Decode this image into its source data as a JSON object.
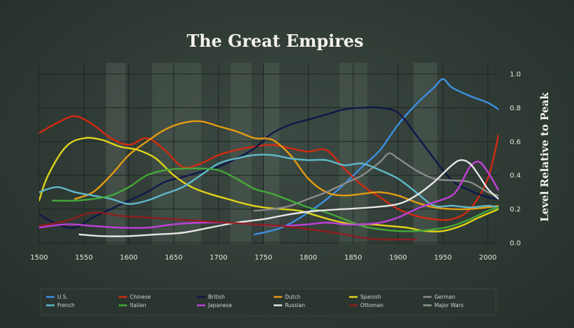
{
  "chart_data": {
    "type": "line",
    "title": "The Great Empires",
    "xlabel": "",
    "ylabel": "Level Relative to Peak",
    "xlim": [
      1500,
      2012
    ],
    "ylim": [
      0,
      1.0
    ],
    "x_ticks": [
      1500,
      1550,
      1600,
      1650,
      1700,
      1750,
      1800,
      1850,
      1900,
      1950,
      2000
    ],
    "y_ticks": [
      "0.0",
      "0.2",
      "0.4",
      "0.6",
      "0.8",
      "1.0"
    ],
    "grid": true,
    "legend_position": "bottom",
    "series": [
      {
        "name": "U.S.",
        "color": "#3d8fe0",
        "x": [
          1740,
          1770,
          1800,
          1830,
          1860,
          1880,
          1900,
          1920,
          1940,
          1950,
          1960,
          1980,
          2000,
          2012
        ],
        "y": [
          0.05,
          0.09,
          0.18,
          0.3,
          0.45,
          0.55,
          0.7,
          0.82,
          0.92,
          0.97,
          0.92,
          0.87,
          0.83,
          0.79
        ]
      },
      {
        "name": "Chinese",
        "color": "#d22a10",
        "x": [
          1500,
          1520,
          1540,
          1560,
          1580,
          1600,
          1620,
          1640,
          1660,
          1680,
          1700,
          1720,
          1740,
          1760,
          1780,
          1800,
          1820,
          1840,
          1860,
          1880,
          1900,
          1920,
          1940,
          1960,
          1980,
          2000,
          2012
        ],
        "y": [
          0.65,
          0.71,
          0.75,
          0.7,
          0.62,
          0.58,
          0.62,
          0.55,
          0.45,
          0.47,
          0.52,
          0.55,
          0.57,
          0.58,
          0.56,
          0.54,
          0.55,
          0.44,
          0.34,
          0.27,
          0.2,
          0.16,
          0.14,
          0.14,
          0.2,
          0.38,
          0.64
        ]
      },
      {
        "name": "British",
        "color": "#10174a",
        "x": [
          1500,
          1520,
          1540,
          1560,
          1580,
          1600,
          1620,
          1640,
          1660,
          1680,
          1700,
          1720,
          1740,
          1760,
          1780,
          1800,
          1820,
          1840,
          1860,
          1880,
          1900,
          1920,
          1940,
          1960,
          1980,
          2000,
          2012
        ],
        "y": [
          0.17,
          0.11,
          0.09,
          0.15,
          0.2,
          0.25,
          0.3,
          0.36,
          0.39,
          0.42,
          0.45,
          0.5,
          0.56,
          0.65,
          0.7,
          0.73,
          0.76,
          0.79,
          0.8,
          0.8,
          0.77,
          0.64,
          0.5,
          0.37,
          0.31,
          0.27,
          0.26
        ]
      },
      {
        "name": "Dutch",
        "color": "#e39b12",
        "x": [
          1540,
          1560,
          1580,
          1600,
          1620,
          1640,
          1660,
          1680,
          1700,
          1720,
          1740,
          1760,
          1780,
          1800,
          1820,
          1840,
          1860,
          1880,
          1900,
          1920,
          1940,
          1960,
          1980,
          2000,
          2012
        ],
        "y": [
          0.26,
          0.3,
          0.4,
          0.52,
          0.6,
          0.67,
          0.71,
          0.72,
          0.69,
          0.66,
          0.62,
          0.61,
          0.52,
          0.38,
          0.3,
          0.28,
          0.29,
          0.3,
          0.28,
          0.24,
          0.21,
          0.2,
          0.2,
          0.21,
          0.22
        ]
      },
      {
        "name": "Spanish",
        "color": "#e0d21a",
        "x": [
          1500,
          1510,
          1530,
          1550,
          1570,
          1590,
          1610,
          1630,
          1650,
          1670,
          1690,
          1710,
          1730,
          1750,
          1770,
          1790,
          1810,
          1830,
          1850,
          1870,
          1890,
          1910,
          1930,
          1950,
          1970,
          1990,
          2012
        ],
        "y": [
          0.25,
          0.4,
          0.57,
          0.62,
          0.61,
          0.57,
          0.55,
          0.5,
          0.4,
          0.33,
          0.29,
          0.26,
          0.23,
          0.21,
          0.2,
          0.19,
          0.16,
          0.13,
          0.11,
          0.11,
          0.1,
          0.09,
          0.07,
          0.07,
          0.1,
          0.15,
          0.2
        ]
      },
      {
        "name": "German",
        "color": "#8a8a8a",
        "x": [
          1740,
          1760,
          1780,
          1800,
          1820,
          1840,
          1860,
          1880,
          1890,
          1900,
          1920,
          1940,
          1960,
          1980,
          2000,
          2012
        ],
        "y": [
          0.19,
          0.2,
          0.22,
          0.26,
          0.3,
          0.35,
          0.4,
          0.48,
          0.53,
          0.5,
          0.43,
          0.38,
          0.37,
          0.36,
          0.3,
          0.28
        ]
      },
      {
        "name": "French",
        "color": "#5fb9c9",
        "x": [
          1500,
          1520,
          1540,
          1560,
          1580,
          1600,
          1620,
          1640,
          1660,
          1680,
          1700,
          1720,
          1740,
          1760,
          1780,
          1800,
          1820,
          1840,
          1860,
          1880,
          1900,
          1920,
          1940,
          1960,
          1980,
          2000,
          2012
        ],
        "y": [
          0.3,
          0.33,
          0.3,
          0.28,
          0.26,
          0.23,
          0.25,
          0.29,
          0.33,
          0.4,
          0.47,
          0.5,
          0.52,
          0.52,
          0.5,
          0.49,
          0.49,
          0.46,
          0.47,
          0.43,
          0.38,
          0.3,
          0.22,
          0.22,
          0.21,
          0.22,
          0.21
        ]
      },
      {
        "name": "Italian",
        "color": "#44a83a",
        "x": [
          1515,
          1540,
          1560,
          1580,
          1600,
          1620,
          1640,
          1660,
          1680,
          1700,
          1720,
          1740,
          1760,
          1780,
          1800,
          1820,
          1840,
          1860,
          1880,
          1900,
          1920,
          1940,
          1960,
          1980,
          2000,
          2012
        ],
        "y": [
          0.25,
          0.25,
          0.26,
          0.28,
          0.33,
          0.4,
          0.43,
          0.44,
          0.44,
          0.43,
          0.38,
          0.32,
          0.29,
          0.25,
          0.21,
          0.18,
          0.14,
          0.1,
          0.08,
          0.07,
          0.07,
          0.08,
          0.1,
          0.14,
          0.19,
          0.21
        ]
      },
      {
        "name": "Japanese",
        "color": "#c040d8",
        "x": [
          1500,
          1530,
          1560,
          1590,
          1620,
          1650,
          1680,
          1710,
          1740,
          1770,
          1800,
          1820,
          1840,
          1860,
          1880,
          1900,
          1920,
          1940,
          1960,
          1970,
          1980,
          1990,
          2000,
          2012
        ],
        "y": [
          0.09,
          0.11,
          0.1,
          0.09,
          0.09,
          0.11,
          0.12,
          0.12,
          0.11,
          0.1,
          0.11,
          0.12,
          0.11,
          0.11,
          0.12,
          0.15,
          0.2,
          0.24,
          0.28,
          0.35,
          0.45,
          0.48,
          0.42,
          0.31
        ]
      },
      {
        "name": "Russian",
        "color": "#e6e6e6",
        "x": [
          1545,
          1570,
          1600,
          1630,
          1660,
          1690,
          1720,
          1750,
          1780,
          1810,
          1840,
          1870,
          1900,
          1920,
          1940,
          1960,
          1970,
          1980,
          1990,
          2000,
          2012
        ],
        "y": [
          0.05,
          0.04,
          0.04,
          0.05,
          0.06,
          0.09,
          0.12,
          0.14,
          0.17,
          0.19,
          0.2,
          0.21,
          0.23,
          0.28,
          0.36,
          0.46,
          0.49,
          0.47,
          0.4,
          0.32,
          0.26
        ]
      },
      {
        "name": "Ottoman",
        "color": "#8e1d1d",
        "x": [
          1500,
          1530,
          1560,
          1590,
          1620,
          1650,
          1680,
          1710,
          1740,
          1770,
          1800,
          1830,
          1860,
          1880,
          1900,
          1920
        ],
        "y": [
          0.1,
          0.13,
          0.18,
          0.16,
          0.15,
          0.14,
          0.13,
          0.12,
          0.11,
          0.1,
          0.08,
          0.06,
          0.03,
          0.02,
          0.02,
          0.02
        ]
      },
      {
        "name": "Major Wars",
        "color": "#8c9a90",
        "x": [],
        "y": []
      }
    ]
  }
}
